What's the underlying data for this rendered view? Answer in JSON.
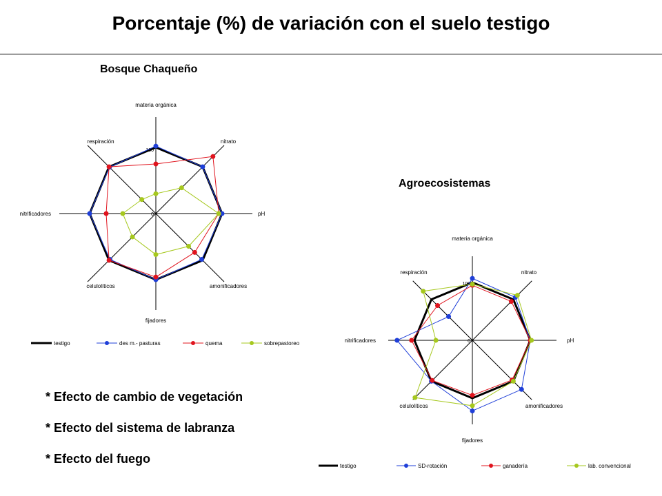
{
  "title": "Porcentaje (%) de variación con el suelo testigo",
  "notes": [
    "* Efecto de cambio de vegetación",
    "* Efecto del sistema de labranza",
    "* Efecto del fuego"
  ],
  "colors": {
    "testigo": "#000000",
    "blue": "#1f3fd8",
    "red": "#e0141e",
    "green": "#a6c81e"
  },
  "chart_data": [
    {
      "type": "radar",
      "title": "Bosque Chaqueño",
      "axes": [
        "materia orgánica",
        "nitrato",
        "pH",
        "amonificadores",
        "fijadores",
        "celulolíticos",
        "nitrificadores",
        "respiración"
      ],
      "rlim": [
        0,
        100
      ],
      "ticks": [
        "100",
        "0"
      ],
      "legend_position": "bottom",
      "series": [
        {
          "name": "testigo",
          "values": [
            100,
            100,
            100,
            100,
            100,
            100,
            100,
            100
          ]
        },
        {
          "name": "des m.- pasturas",
          "values": [
            102,
            100,
            100,
            98,
            100,
            98,
            100,
            99
          ]
        },
        {
          "name": "quema",
          "values": [
            75,
            122,
            95,
            83,
            96,
            100,
            75,
            100
          ]
        },
        {
          "name": "sobrepastoreo",
          "values": [
            30,
            55,
            95,
            70,
            62,
            50,
            50,
            30
          ]
        }
      ]
    },
    {
      "type": "radar",
      "title": "Agroecosistemas",
      "axes": [
        "materia orgánica",
        "nitrato",
        "pH",
        "amonificadores",
        "fijadores",
        "celulolíticos",
        "nitrificadores",
        "respiración"
      ],
      "rlim": [
        0,
        100
      ],
      "ticks": [
        "100",
        "0"
      ],
      "legend_position": "bottom",
      "series": [
        {
          "name": "testigo",
          "values": [
            100,
            100,
            100,
            100,
            100,
            100,
            100,
            100
          ]
        },
        {
          "name": "SD-rotación",
          "values": [
            107,
            105,
            100,
            120,
            122,
            100,
            130,
            58
          ]
        },
        {
          "name": "ganadería",
          "values": [
            95,
            95,
            100,
            97,
            95,
            98,
            105,
            85
          ]
        },
        {
          "name": "lab. convencional",
          "values": [
            97,
            110,
            102,
            100,
            113,
            140,
            63,
            120
          ]
        }
      ]
    }
  ]
}
